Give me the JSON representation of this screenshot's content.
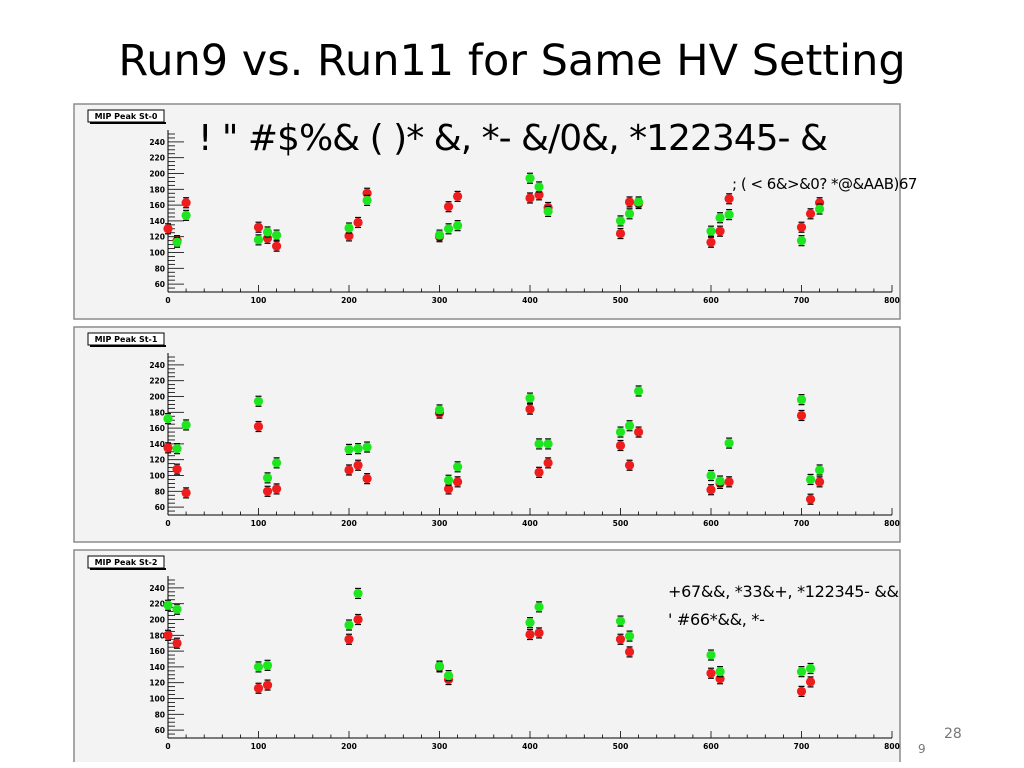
{
  "slide": {
    "title": "Run9 vs. Run11 for Same HV Setting",
    "overlay_text_1": "! \" #$%& ( )* &, *- &/0&, *122345- &",
    "overlay_text_2": "; ( < 6&>&0? *@&AAB)67",
    "overlay_text_3": "+67&&, *33&+, *122345- &&",
    "overlay_text_4": "' #66*&&, *-",
    "slide_number": "28",
    "sub_page_number": "9"
  },
  "colors": {
    "series_red": "#ee1c1c",
    "series_green": "#1ee61e",
    "panel_background": "#f3f3f3",
    "panel_border": "#8c8c8c"
  },
  "chart_data": [
    {
      "type": "scatter",
      "title": "MIP Peak St-0",
      "xlim": [
        0,
        800
      ],
      "ylim": [
        50,
        250
      ],
      "x_ticks": [
        0,
        100,
        200,
        300,
        400,
        500,
        600,
        700,
        800
      ],
      "y_ticks": [
        60,
        80,
        100,
        120,
        140,
        160,
        180,
        200,
        220,
        240
      ],
      "series": [
        {
          "color": "#ee1c1c",
          "points": [
            [
              0,
              130
            ],
            [
              10,
              115
            ],
            [
              20,
              163
            ],
            [
              100,
              132
            ],
            [
              110,
              118
            ],
            [
              120,
              108
            ],
            [
              200,
              121
            ],
            [
              210,
              138
            ],
            [
              220,
              175
            ],
            [
              300,
              120
            ],
            [
              310,
              158
            ],
            [
              320,
              171
            ],
            [
              400,
              169
            ],
            [
              410,
              173
            ],
            [
              420,
              157
            ],
            [
              500,
              124
            ],
            [
              510,
              164
            ],
            [
              520,
              162
            ],
            [
              600,
              113
            ],
            [
              610,
              127
            ],
            [
              620,
              168
            ],
            [
              700,
              132
            ],
            [
              710,
              149
            ],
            [
              720,
              163
            ]
          ]
        },
        {
          "color": "#1ee61e",
          "points": [
            [
              10,
              113
            ],
            [
              20,
              147
            ],
            [
              100,
              116
            ],
            [
              110,
              126
            ],
            [
              120,
              122
            ],
            [
              200,
              131
            ],
            [
              220,
              166
            ],
            [
              300,
              122
            ],
            [
              310,
              130
            ],
            [
              320,
              134
            ],
            [
              400,
              194
            ],
            [
              410,
              183
            ],
            [
              420,
              152
            ],
            [
              500,
              140
            ],
            [
              510,
              149
            ],
            [
              520,
              164
            ],
            [
              600,
              127
            ],
            [
              610,
              144
            ],
            [
              620,
              148
            ],
            [
              700,
              115
            ],
            [
              720,
              155
            ]
          ]
        }
      ]
    },
    {
      "type": "scatter",
      "title": "MIP Peak St-1",
      "xlim": [
        0,
        800
      ],
      "ylim": [
        50,
        250
      ],
      "x_ticks": [
        0,
        100,
        200,
        300,
        400,
        500,
        600,
        700,
        800
      ],
      "y_ticks": [
        60,
        80,
        100,
        120,
        140,
        160,
        180,
        200,
        220,
        240
      ],
      "series": [
        {
          "color": "#ee1c1c",
          "points": [
            [
              0,
              135
            ],
            [
              10,
              108
            ],
            [
              20,
              78
            ],
            [
              100,
              162
            ],
            [
              110,
              80
            ],
            [
              120,
              83
            ],
            [
              200,
              107
            ],
            [
              210,
              113
            ],
            [
              220,
              96
            ],
            [
              300,
              179
            ],
            [
              310,
              83
            ],
            [
              320,
              92
            ],
            [
              400,
              184
            ],
            [
              410,
              104
            ],
            [
              420,
              116
            ],
            [
              500,
              138
            ],
            [
              510,
              113
            ],
            [
              520,
              155
            ],
            [
              600,
              82
            ],
            [
              610,
              90
            ],
            [
              620,
              92
            ],
            [
              700,
              176
            ],
            [
              710,
              70
            ],
            [
              720,
              92
            ]
          ]
        },
        {
          "color": "#1ee61e",
          "points": [
            [
              0,
              172
            ],
            [
              10,
              134
            ],
            [
              20,
              164
            ],
            [
              100,
              194
            ],
            [
              110,
              97
            ],
            [
              120,
              116
            ],
            [
              200,
              133
            ],
            [
              210,
              134
            ],
            [
              220,
              136
            ],
            [
              300,
              183
            ],
            [
              310,
              94
            ],
            [
              320,
              111
            ],
            [
              400,
              198
            ],
            [
              410,
              140
            ],
            [
              420,
              140
            ],
            [
              500,
              155
            ],
            [
              510,
              163
            ],
            [
              520,
              207
            ],
            [
              600,
              100
            ],
            [
              610,
              93
            ],
            [
              620,
              141
            ],
            [
              700,
              196
            ],
            [
              710,
              95
            ],
            [
              720,
              107
            ]
          ]
        }
      ]
    },
    {
      "type": "scatter",
      "title": "MIP Peak St-2",
      "xlim": [
        0,
        800
      ],
      "ylim": [
        50,
        250
      ],
      "x_ticks": [
        0,
        100,
        200,
        300,
        400,
        500,
        600,
        700,
        800
      ],
      "y_ticks": [
        60,
        80,
        100,
        120,
        140,
        160,
        180,
        200,
        220,
        240
      ],
      "series": [
        {
          "color": "#ee1c1c",
          "points": [
            [
              0,
              180
            ],
            [
              10,
              170
            ],
            [
              100,
              113
            ],
            [
              110,
              117
            ],
            [
              200,
              175
            ],
            [
              210,
              200
            ],
            [
              300,
              140
            ],
            [
              310,
              124
            ],
            [
              400,
              181
            ],
            [
              410,
              183
            ],
            [
              500,
              175
            ],
            [
              510,
              159
            ],
            [
              600,
              132
            ],
            [
              610,
              125
            ],
            [
              700,
              109
            ],
            [
              710,
              121
            ]
          ]
        },
        {
          "color": "#1ee61e",
          "points": [
            [
              0,
              218
            ],
            [
              10,
              213
            ],
            [
              100,
              140
            ],
            [
              110,
              142
            ],
            [
              200,
              193
            ],
            [
              210,
              233
            ],
            [
              300,
              141
            ],
            [
              310,
              129
            ],
            [
              400,
              196
            ],
            [
              410,
              216
            ],
            [
              500,
              198
            ],
            [
              510,
              179
            ],
            [
              600,
              155
            ],
            [
              610,
              134
            ],
            [
              700,
              134
            ],
            [
              710,
              138
            ]
          ]
        }
      ]
    }
  ]
}
